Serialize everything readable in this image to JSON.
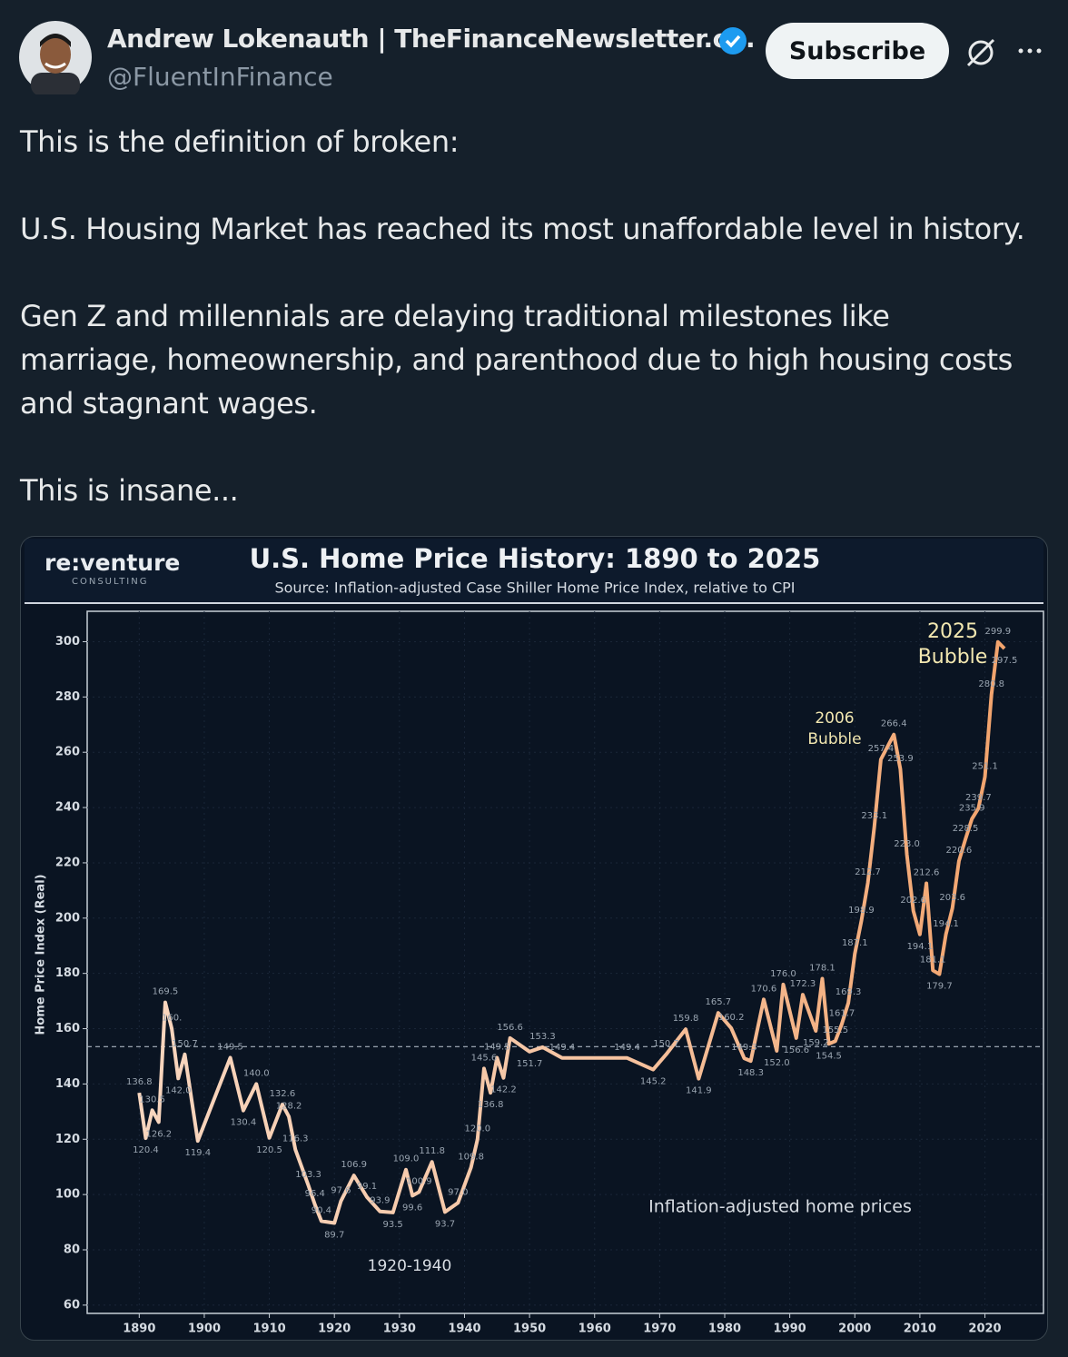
{
  "post": {
    "author_name": "Andrew Lokenauth | TheFinanceNewsletter.c...",
    "handle": "@FluentInFinance",
    "subscribe": "Subscribe",
    "paragraphs": [
      "This is the definition of broken:",
      "U.S. Housing Market has reached its most unaffordable level in history.",
      "Gen Z and millennials are delaying traditional milestones like marriage, homeownership, and parenthood due to high housing costs and stagnant wages.",
      "This is insane..."
    ]
  },
  "chart_data": {
    "type": "line",
    "title": "U.S. Home Price History: 1890 to 2025",
    "subtitle": "Source: Inflation-adjusted Case Shiller Home Price Index, relative to CPI",
    "logo": "re:venture",
    "logo_sub": "CONSULTING",
    "y_label": "Home Price Index (Real)",
    "x": [
      1890,
      1891,
      1892,
      1893,
      1894,
      1895,
      1896,
      1897,
      1899,
      1904,
      1906,
      1908,
      1910,
      1912,
      1913,
      1914,
      1916,
      1917,
      1918,
      1920,
      1921,
      1923,
      1925,
      1927,
      1929,
      1931,
      1932,
      1933,
      1935,
      1937,
      1939,
      1941,
      1942,
      1943,
      1944,
      1945,
      1946,
      1947,
      1950,
      1952,
      1955,
      1965,
      1969,
      1971,
      1974,
      1976,
      1979,
      1981,
      1983,
      1984,
      1986,
      1988,
      1989,
      1991,
      1992,
      1994,
      1995,
      1996,
      1997,
      1998,
      1999,
      2000,
      2001,
      2002,
      2003,
      2004,
      2006,
      2007,
      2008,
      2009,
      2010,
      2011,
      2012,
      2013,
      2014,
      2015,
      2016,
      2017,
      2018,
      2019,
      2020,
      2021,
      2022,
      2023
    ],
    "series": [
      {
        "name": "Inflation-adjusted home prices",
        "color": "#f2a067",
        "values": [
          136.8,
          120.4,
          130.5,
          126.2,
          169.5,
          160,
          142,
          150.7,
          119.4,
          149.5,
          130.4,
          140,
          120.5,
          132.6,
          128.2,
          116.3,
          103.3,
          96.4,
          90.4,
          89.7,
          97.6,
          106.9,
          99.1,
          93.9,
          93.5,
          109,
          99.6,
          100.9,
          111.8,
          93.7,
          97,
          109.8,
          120,
          145.6,
          136.8,
          149.5,
          142.2,
          156.6,
          151.7,
          153.3,
          149.4,
          149.4,
          145.2,
          150.7,
          159.8,
          141.9,
          165.7,
          160.2,
          149.3,
          148.3,
          170.6,
          152,
          176,
          156.6,
          172.3,
          159.2,
          178.1,
          154.5,
          155.5,
          161.7,
          169.3,
          187.1,
          198.9,
          212.7,
          233.1,
          257.4,
          266.4,
          253.9,
          223,
          202.6,
          194.1,
          212.6,
          181.1,
          179.7,
          194.1,
          203.6,
          220.6,
          228.5,
          235.9,
          239.7,
          251.1,
          280.8,
          299.9,
          297.5
        ],
        "value_labels": [
          "136.8",
          "120.4",
          "130.5",
          "126.2",
          "169.5",
          "160.",
          "142.0",
          "150.7",
          "119.4",
          "149.5",
          "130.4",
          "140.0",
          "120.5",
          "132.6",
          "128.2",
          "116.3",
          "103.3",
          "96.4",
          "90.4",
          "89.7",
          "97.6",
          "106.9",
          "99.1",
          "93.9",
          "93.5",
          "109.0",
          "99.6",
          "100.9",
          "111.8",
          "93.7",
          "97.0",
          "109.8",
          "120.0",
          "145.6",
          "136.8",
          "149.5",
          "142.2",
          "156.6",
          "151.7",
          "153.3",
          "149.4",
          "149.4",
          "145.2",
          "150.7",
          "159.8",
          "141.9",
          "165.7",
          "160.2",
          "149.3",
          "148.3",
          "170.6",
          "152.0",
          "176.0",
          "156.6",
          "172.3",
          "159.2",
          "178.1",
          "154.5",
          "155.5",
          "161.7",
          "169.3",
          "187.1",
          "198.9",
          "212.7",
          "233.1",
          "257.4",
          "266.4",
          "253.9",
          "223.0",
          "202.6",
          "194.1",
          "212.6",
          "181.1",
          "179.7",
          "194.1",
          "203.6",
          "220.6",
          "228.5",
          "235.9",
          "239.7",
          "251.1",
          "280.8",
          "299.9",
          "297.5"
        ]
      }
    ],
    "reference_line": 153.5,
    "annotations": [
      {
        "lines": [
          "2006",
          "Bubble"
        ]
      },
      {
        "lines": [
          "2025",
          "Bubble"
        ]
      },
      {
        "lines": [
          "1920-1940"
        ]
      },
      {
        "lines": [
          "Inflation-adjusted home prices"
        ]
      }
    ],
    "xlim": [
      1882,
      2029
    ],
    "xticks": [
      1890,
      1900,
      1910,
      1920,
      1930,
      1940,
      1950,
      1960,
      1970,
      1980,
      1990,
      2000,
      2010,
      2020
    ],
    "ylim": [
      57,
      311
    ],
    "yticks": [
      60,
      80,
      100,
      120,
      140,
      160,
      180,
      200,
      220,
      240,
      260,
      280,
      300
    ],
    "grid": true
  }
}
